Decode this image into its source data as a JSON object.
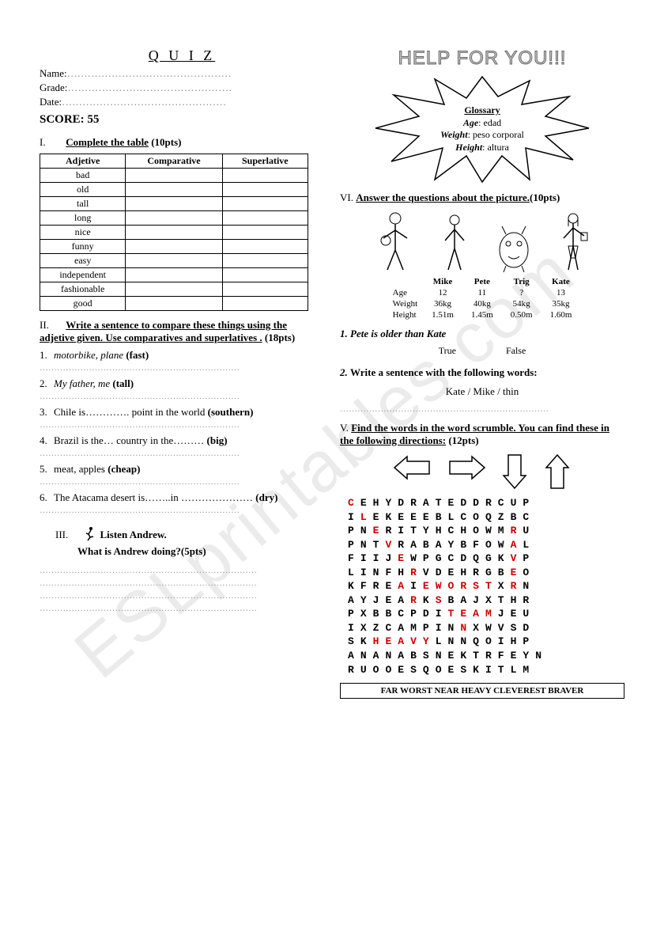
{
  "header": {
    "title": "Q U I Z",
    "name_label": "Name:",
    "grade_label": "Grade:",
    "date_label": "Date:",
    "score_label": "SCORE: 55",
    "dots": "…………………………………………"
  },
  "watermark": "ESLprintables.com",
  "section1": {
    "roman": "I.",
    "title": "Complete the table",
    "pts": "(10pts)",
    "cols": [
      "Adjetive",
      "Comparative",
      "Superlative"
    ],
    "rows": [
      "bad",
      "old",
      "tall",
      "long",
      "nice",
      "funny",
      "easy",
      "independent",
      "fashionable",
      "good"
    ]
  },
  "section2": {
    "roman": "II.",
    "title": "Write a sentence to compare these things using the adjetive given.  Use comparatives and superlatives .",
    "pts": "(18pts)",
    "items": [
      {
        "n": "1.",
        "text": "motorbike, plane",
        "adj": "(fast)",
        "italic": true
      },
      {
        "n": "2.",
        "text": "My father, me",
        "adj": "(tall)",
        "italic": true
      },
      {
        "n": "3.",
        "text": "Chile is…………. point in the world",
        "adj": "(southern)",
        "italic": false
      },
      {
        "n": "4.",
        "text": "Brazil is the… country in the………",
        "adj": "(big)",
        "italic": false
      },
      {
        "n": "5.",
        "text": "meat, apples",
        "adj": "(cheap)",
        "italic": false
      },
      {
        "n": "6.",
        "text": "The Atacama desert is……..in …………………",
        "adj": "(dry)",
        "italic": false
      }
    ],
    "ans_dots": "……………………………………………………………"
  },
  "section3": {
    "roman": "III.",
    "line1": "Listen Andrew.",
    "line2": "What is Andrew doing?(5pts)",
    "ans_dots": "…………………………………………………………………"
  },
  "help": {
    "title": "HELP FOR YOU!!!",
    "glossary_title": "Glossary",
    "items": [
      {
        "term": "Age",
        "def": ": edad"
      },
      {
        "term": "Weight",
        "def": ": peso corporal"
      },
      {
        "term": "Height",
        "def": ": altura"
      }
    ]
  },
  "section6": {
    "roman": "VI.",
    "title": "Answer the questions about the picture.",
    "pts": "(10pts)",
    "chars": [
      "Mike",
      "Pete",
      "Trig",
      "Kate"
    ],
    "rows": [
      {
        "label": "Age",
        "vals": [
          "12",
          "11",
          "?",
          "13"
        ]
      },
      {
        "label": "Weight",
        "vals": [
          "36kg",
          "40kg",
          "54kg",
          "35kg"
        ]
      },
      {
        "label": "Height",
        "vals": [
          "1.51m",
          "1.45m",
          "0.50m",
          "1.60m"
        ]
      }
    ],
    "q1_num": "1.",
    "q1_text": "Pete is older than Kate",
    "true_label": "True",
    "false_label": "False",
    "q2_num": "2.",
    "q2_text": "Write a sentence with the following words:",
    "q2_words": "Kate  /  Mike  /  thin",
    "ans_dots": "………………………………………………………………"
  },
  "section5": {
    "roman": "V.",
    "title": "Find the  words in the word scrumble.  You can find these in the following directions:",
    "pts": "(12pts)",
    "grid": [
      [
        [
          "C",
          1
        ],
        [
          "E",
          0
        ],
        [
          "H",
          0
        ],
        [
          "Y",
          0
        ],
        [
          "D",
          0
        ],
        [
          "R",
          0
        ],
        [
          "A",
          0
        ],
        [
          "T",
          0
        ],
        [
          "E",
          0
        ],
        [
          "D",
          0
        ],
        [
          "D",
          0
        ],
        [
          "R",
          0
        ],
        [
          "C",
          0
        ],
        [
          "U",
          0
        ],
        [
          "P",
          0
        ]
      ],
      [
        [
          "I",
          0
        ],
        [
          "L",
          1
        ],
        [
          "E",
          0
        ],
        [
          "K",
          0
        ],
        [
          "E",
          0
        ],
        [
          "E",
          0
        ],
        [
          "E",
          0
        ],
        [
          "B",
          0
        ],
        [
          "L",
          0
        ],
        [
          "C",
          0
        ],
        [
          "O",
          0
        ],
        [
          "Q",
          0
        ],
        [
          "Z",
          0
        ],
        [
          "B",
          0
        ],
        [
          "C",
          0
        ]
      ],
      [
        [
          "P",
          0
        ],
        [
          "N",
          0
        ],
        [
          "E",
          1
        ],
        [
          "R",
          0
        ],
        [
          "I",
          0
        ],
        [
          "T",
          0
        ],
        [
          "Y",
          0
        ],
        [
          "H",
          0
        ],
        [
          "C",
          0
        ],
        [
          "H",
          0
        ],
        [
          "O",
          0
        ],
        [
          "W",
          0
        ],
        [
          "M",
          0
        ],
        [
          "R",
          1
        ],
        [
          "U",
          0
        ]
      ],
      [
        [
          "P",
          0
        ],
        [
          "N",
          0
        ],
        [
          "T",
          0
        ],
        [
          "V",
          1
        ],
        [
          "R",
          0
        ],
        [
          "A",
          0
        ],
        [
          "B",
          0
        ],
        [
          "A",
          0
        ],
        [
          "Y",
          0
        ],
        [
          "B",
          0
        ],
        [
          "F",
          0
        ],
        [
          "O",
          0
        ],
        [
          "W",
          0
        ],
        [
          "A",
          1
        ],
        [
          "L",
          0
        ]
      ],
      [
        [
          "F",
          0
        ],
        [
          "I",
          0
        ],
        [
          "I",
          0
        ],
        [
          "J",
          0
        ],
        [
          "E",
          1
        ],
        [
          "W",
          0
        ],
        [
          "P",
          0
        ],
        [
          "G",
          0
        ],
        [
          "C",
          0
        ],
        [
          "D",
          0
        ],
        [
          "Q",
          0
        ],
        [
          "G",
          0
        ],
        [
          "K",
          0
        ],
        [
          "V",
          1
        ],
        [
          "P",
          0
        ]
      ],
      [
        [
          "L",
          0
        ],
        [
          "I",
          0
        ],
        [
          "N",
          0
        ],
        [
          "F",
          0
        ],
        [
          "H",
          0
        ],
        [
          "R",
          1
        ],
        [
          "V",
          0
        ],
        [
          "D",
          0
        ],
        [
          "E",
          0
        ],
        [
          "H",
          0
        ],
        [
          "R",
          0
        ],
        [
          "G",
          0
        ],
        [
          "B",
          0
        ],
        [
          "E",
          1
        ],
        [
          "O",
          0
        ]
      ],
      [
        [
          "K",
          0
        ],
        [
          "F",
          0
        ],
        [
          "R",
          0
        ],
        [
          "E",
          0
        ],
        [
          "A",
          1
        ],
        [
          "I",
          0
        ],
        [
          "E",
          1
        ],
        [
          "W",
          1
        ],
        [
          "O",
          1
        ],
        [
          "R",
          1
        ],
        [
          "S",
          1
        ],
        [
          "T",
          1
        ],
        [
          "X",
          0
        ],
        [
          "R",
          1
        ],
        [
          "N",
          0
        ]
      ],
      [
        [
          "A",
          0
        ],
        [
          "Y",
          0
        ],
        [
          "J",
          0
        ],
        [
          "E",
          0
        ],
        [
          "A",
          0
        ],
        [
          "R",
          1
        ],
        [
          "K",
          0
        ],
        [
          "S",
          1
        ],
        [
          "B",
          0
        ],
        [
          "A",
          0
        ],
        [
          "J",
          0
        ],
        [
          "X",
          0
        ],
        [
          "T",
          0
        ],
        [
          "H",
          0
        ],
        [
          "R",
          0
        ]
      ],
      [
        [
          "P",
          0
        ],
        [
          "X",
          0
        ],
        [
          "B",
          0
        ],
        [
          "B",
          0
        ],
        [
          "C",
          0
        ],
        [
          "P",
          0
        ],
        [
          "D",
          0
        ],
        [
          "I",
          0
        ],
        [
          "T",
          1
        ],
        [
          "E",
          1
        ],
        [
          "A",
          1
        ],
        [
          "M",
          1
        ],
        [
          "J",
          0
        ],
        [
          "E",
          0
        ],
        [
          "U",
          0
        ]
      ],
      [
        [
          "I",
          0
        ],
        [
          "X",
          0
        ],
        [
          "Z",
          0
        ],
        [
          "C",
          0
        ],
        [
          "A",
          0
        ],
        [
          "M",
          0
        ],
        [
          "P",
          0
        ],
        [
          "I",
          0
        ],
        [
          "N",
          0
        ],
        [
          "N",
          1
        ],
        [
          "X",
          0
        ],
        [
          "W",
          0
        ],
        [
          "V",
          0
        ],
        [
          "S",
          0
        ],
        [
          "D",
          0
        ]
      ],
      [
        [
          "S",
          0
        ],
        [
          "K",
          0
        ],
        [
          "H",
          1
        ],
        [
          "E",
          1
        ],
        [
          "A",
          1
        ],
        [
          "V",
          1
        ],
        [
          "Y",
          1
        ],
        [
          "L",
          0
        ],
        [
          "N",
          0
        ],
        [
          "N",
          0
        ],
        [
          "Q",
          0
        ],
        [
          "O",
          0
        ],
        [
          "I",
          0
        ],
        [
          "H",
          0
        ],
        [
          "P",
          0
        ]
      ],
      [
        [
          "A",
          0
        ],
        [
          "N",
          0
        ],
        [
          "A",
          0
        ],
        [
          "N",
          0
        ],
        [
          "A",
          0
        ],
        [
          "B",
          0
        ],
        [
          "S",
          0
        ],
        [
          "N",
          0
        ],
        [
          "E",
          0
        ],
        [
          "K",
          0
        ],
        [
          "T",
          0
        ],
        [
          "R",
          0
        ],
        [
          "F",
          0
        ],
        [
          "E",
          0
        ],
        [
          "Y",
          0
        ],
        [
          "N",
          0
        ]
      ],
      [
        [
          "R",
          0
        ],
        [
          "U",
          0
        ],
        [
          "O",
          0
        ],
        [
          "O",
          0
        ],
        [
          "E",
          0
        ],
        [
          "S",
          0
        ],
        [
          "Q",
          0
        ],
        [
          "O",
          0
        ],
        [
          "E",
          0
        ],
        [
          "S",
          0
        ],
        [
          "K",
          0
        ],
        [
          "I",
          0
        ],
        [
          "T",
          0
        ],
        [
          "L",
          0
        ],
        [
          "M",
          0
        ]
      ]
    ],
    "answers": "FAR   WORST   NEAR   HEAVY   CLEVEREST   BRAVER"
  },
  "colors": {
    "highlight": "#cc0000",
    "text": "#000000",
    "bg": "#ffffff"
  }
}
